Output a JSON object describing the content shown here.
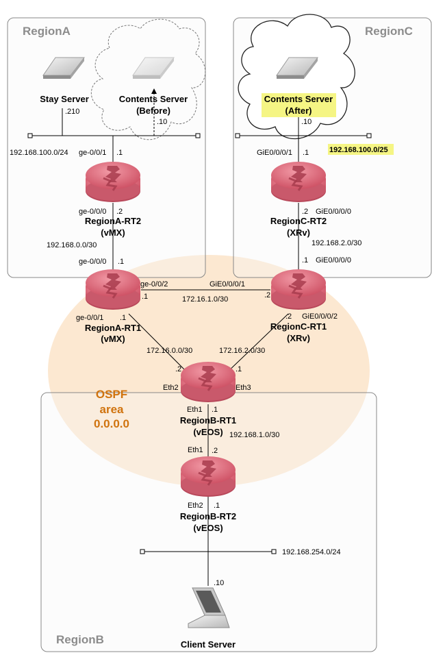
{
  "regions": {
    "region_a": "RegionA",
    "region_b": "RegionB",
    "region_c": "RegionC"
  },
  "ospf": {
    "line1": "OSPF",
    "line2": "area",
    "line3": "0.0.0.0"
  },
  "servers": {
    "stay": "Stay Server",
    "contents_before_1": "Contents Server",
    "contents_before_2": "(Before)",
    "contents_after_1": "Contents Server",
    "contents_after_2": "(After)",
    "client": "Client Server"
  },
  "routers": {
    "regiona_rt2_name": "RegionA-RT2",
    "regiona_rt2_type": "(vMX)",
    "regiona_rt1_name": "RegionA-RT1",
    "regiona_rt1_type": "(vMX)",
    "regionc_rt2_name": "RegionC-RT2",
    "regionc_rt2_type": "(XRv)",
    "regionc_rt1_name": "RegionC-RT1",
    "regionc_rt1_type": "(XRv)",
    "regionb_rt1_name": "RegionB-RT1",
    "regionb_rt1_type": "(vEOS)",
    "regionb_rt2_name": "RegionB-RT2",
    "regionb_rt2_type": "(vEOS)"
  },
  "labels": {
    "stay_ip": ".210",
    "before_ip": ".10",
    "after_ip": ".10",
    "net_a_lan": "192.168.100.0/24",
    "a_rt2_up_if": "ge-0/0/1",
    "a_rt2_up_ip": ".1",
    "a_rt2_down_if": "ge-0/0/0",
    "a_rt2_down_ip": ".2",
    "net_a_link": "192.168.0.0/30",
    "a_rt1_up_if": "ge-0/0/0",
    "a_rt1_up_ip": ".1",
    "a_rt1_right_if": "ge-0/0/2",
    "a_rt1_right_ip": ".1",
    "net_core_ac": "172.16.1.0/30",
    "c_rt1_left_if": "GiE0/0/0/1",
    "c_rt1_left_ip": ".2",
    "c_rt2_up_if": "GiE0/0/0/1",
    "c_rt2_up_ip": ".1",
    "net_c_lan": "192.168.100.0/25",
    "c_rt2_down_ip": ".2",
    "c_rt2_down_if": "GiE0/0/0/0",
    "net_c_link": "192.168.2.0/30",
    "c_rt1_up_ip": ".1",
    "c_rt1_up_if": "GiE0/0/0/0",
    "a_rt1_down_if": "ge-0/0/1",
    "a_rt1_down_ip": ".1",
    "c_rt1_down_ip": ".2",
    "c_rt1_down_if": "GiE0/0/0/2",
    "net_core_ab": "172.16.0.0/30",
    "net_core_cb": "172.16.2.0/30",
    "b_rt1_left_ip": ".2",
    "b_rt1_left_if": "Eth2",
    "b_rt1_right_ip": ".1",
    "b_rt1_right_if": "Eth3",
    "b_rt1_down_if": "Eth1",
    "b_rt1_down_ip": ".1",
    "net_b_link": "192.168.1.0/30",
    "b_rt2_up_if": "Eth1",
    "b_rt2_up_ip": ".2",
    "b_rt2_down_if": "Eth2",
    "b_rt2_down_ip": ".1",
    "net_b_lan": "192.168.254.0/24",
    "client_ip": ".10"
  },
  "colors": {
    "router_fill": "#e06f7f",
    "router_dark": "#b8485a",
    "ospf_area": "#fce5cc",
    "ospf_text": "#d0730e",
    "highlight": "#f5f584",
    "region_border": "#888888",
    "region_fill": "#f5f5f5"
  }
}
